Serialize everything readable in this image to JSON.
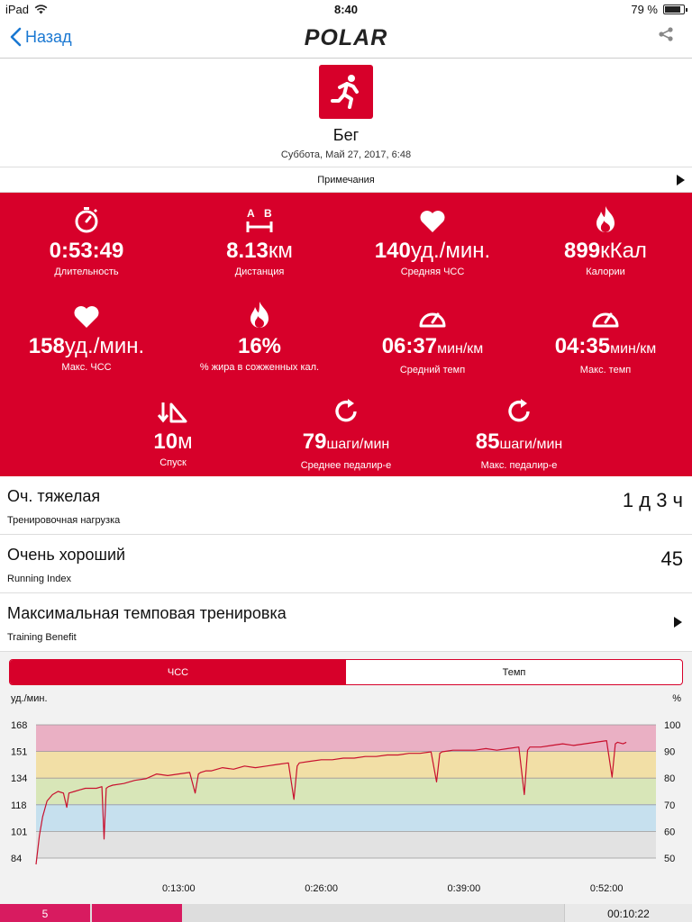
{
  "status_bar": {
    "device": "iPad",
    "time": "8:40",
    "battery": "79 %",
    "battery_level": 0.79
  },
  "nav": {
    "back_label": "Назад",
    "logo": "POLAR"
  },
  "header": {
    "sport": "Бег",
    "date": "Суббота, Май 27, 2017, 6:48",
    "notes_label": "Примечания"
  },
  "colors": {
    "accent": "#d7002a",
    "link": "#1a78d2",
    "lap": "#d81b60"
  },
  "stats": [
    {
      "icon": "stopwatch-icon",
      "value": "0:53:49",
      "unit": "",
      "label": "Длительность"
    },
    {
      "icon": "distance-icon",
      "value": "8.13",
      "unit": "км",
      "label": "Дистанция"
    },
    {
      "icon": "heart-icon",
      "value": "140",
      "unit": "уд./мин.",
      "label": "Средняя ЧСС"
    },
    {
      "icon": "flame-icon",
      "value": "899",
      "unit": "кКал",
      "label": "Калории"
    },
    {
      "icon": "heart-icon",
      "value": "158",
      "unit": "уд./мин.",
      "label": "Макс. ЧСС"
    },
    {
      "icon": "flame-icon",
      "value": "16%",
      "unit": "",
      "label": "% жира в сожженных кал."
    },
    {
      "icon": "speedometer-icon",
      "value": "06:37",
      "unit": "мин/км",
      "label": "Средний темп"
    },
    {
      "icon": "speedometer-icon",
      "value": "04:35",
      "unit": "мин/км",
      "label": "Макс. темп"
    },
    {
      "icon": "descent-icon",
      "value": "10",
      "unit": "м",
      "label": "Спуск"
    },
    {
      "icon": "cadence-icon",
      "value": "79",
      "unit": "шаги/мин",
      "label": "Среднее педалир-е"
    },
    {
      "icon": "cadence-icon",
      "value": "85",
      "unit": "шаги/мин",
      "label": "Макс. педалир-е"
    }
  ],
  "summary": {
    "load": {
      "title": "Оч. тяжелая",
      "sub": "Тренировочная нагрузка",
      "value": "1 д 3 ч"
    },
    "running_index": {
      "title": "Очень хороший",
      "sub": "Running Index",
      "value": "45"
    },
    "benefit": {
      "title": "Максимальная темповая тренировка",
      "sub": "Training Benefit"
    }
  },
  "chart_tabs": {
    "hr": "ЧСС",
    "pace": "Темп",
    "active": "hr"
  },
  "chart_data": {
    "type": "line",
    "ylabel": "уд./мин.",
    "y2label": "%",
    "ylim": [
      84,
      168
    ],
    "y2lim": [
      50,
      100
    ],
    "y_ticks": [
      "168",
      "151",
      "134",
      "118",
      "101",
      "84"
    ],
    "y2_ticks": [
      "100",
      "90",
      "80",
      "70",
      "60",
      "50"
    ],
    "x_ticks": [
      "0:13:00",
      "0:26:00",
      "0:39:00",
      "0:52:00"
    ],
    "zones": [
      {
        "from": 151,
        "to": 168,
        "color": "#eab0c4"
      },
      {
        "from": 134,
        "to": 151,
        "color": "#f2dfa6"
      },
      {
        "from": 118,
        "to": 134,
        "color": "#d8e6b8"
      },
      {
        "from": 101,
        "to": 118,
        "color": "#c6e0ee"
      },
      {
        "from": 84,
        "to": 101,
        "color": "#e2e2e2"
      }
    ],
    "series": [
      {
        "color": "#c8102e",
        "x_min": [
          0,
          0.3,
          0.6,
          1,
          1.5,
          2,
          2.5,
          2.8,
          3,
          3.5,
          4,
          4.5,
          5,
          5.5,
          6,
          6.2,
          6.4,
          6.6,
          7,
          8,
          9,
          10,
          11,
          12,
          13,
          14,
          14.5,
          14.8,
          15,
          15.5,
          16,
          17,
          18,
          19,
          20,
          21,
          22,
          23,
          23.5,
          23.8,
          24,
          25,
          26,
          27,
          28,
          29,
          30,
          31,
          32,
          33,
          34,
          35,
          36,
          36.5,
          36.8,
          37,
          38,
          39,
          40,
          41,
          42,
          43,
          44,
          44.5,
          44.8,
          45,
          46,
          47,
          48,
          49,
          50,
          51,
          52,
          52.5,
          52.8,
          53,
          53.5,
          53.8
        ],
        "values": [
          80,
          98,
          110,
          120,
          124,
          126,
          125,
          116,
          125,
          126,
          127,
          128,
          128,
          128,
          129,
          96,
          128,
          129,
          130,
          131,
          133,
          134,
          137,
          136,
          137,
          138,
          125,
          137,
          138,
          139,
          139,
          141,
          140,
          142,
          141,
          142,
          143,
          144,
          121,
          142,
          144,
          145,
          146,
          146,
          147,
          147,
          148,
          148,
          149,
          149,
          150,
          150,
          151,
          132,
          150,
          151,
          152,
          152,
          152,
          153,
          152,
          153,
          154,
          124,
          152,
          154,
          154,
          155,
          156,
          155,
          156,
          157,
          158,
          135,
          156,
          157,
          156,
          157
        ]
      }
    ]
  },
  "bottom_bar": {
    "lap": "5",
    "elapsed": "00:10:22",
    "progress": 0.2
  }
}
